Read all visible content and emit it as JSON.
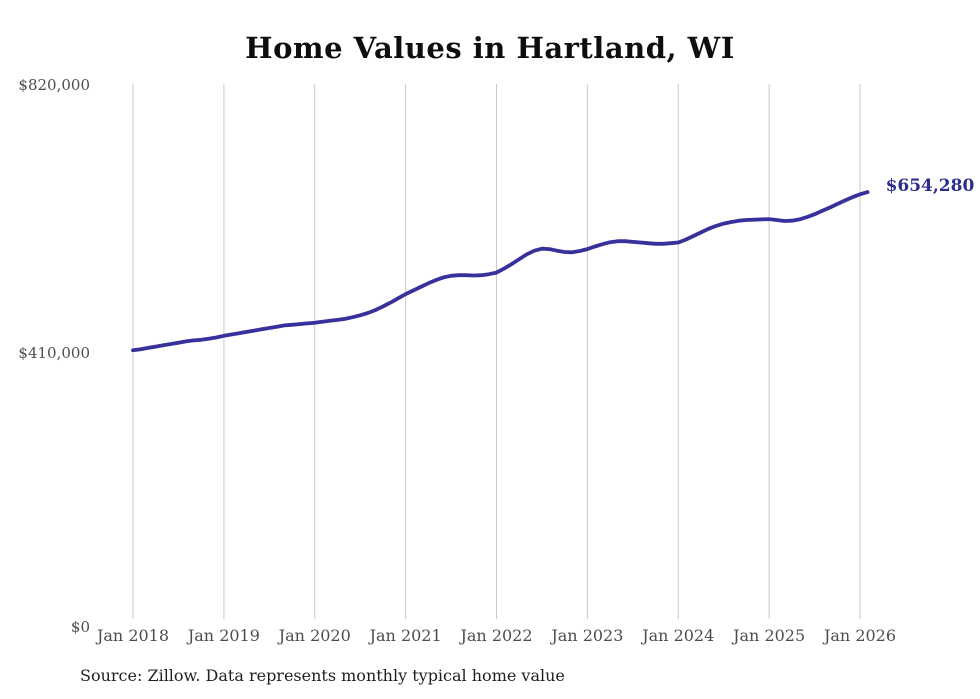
{
  "title": "Home Values in Hartland, WI",
  "source_note": "Source: Zillow. Data represents monthly typical home value",
  "end_label": "$654,280",
  "colors": {
    "line": "#37329B",
    "end_label_text": "#2B2E8C",
    "gridline": "#C9C9C9",
    "axis_text": "#4D4D4D",
    "title_text": "#0E0E0E",
    "source_text": "#1F1F1F",
    "background": "#FFFFFF"
  },
  "chart_data": {
    "type": "line",
    "title": "Home Values in Hartland, WI",
    "xlabel": "",
    "ylabel": "",
    "ylim": [
      0,
      820000
    ],
    "y_ticks": [
      {
        "value": 0,
        "label": "$0"
      },
      {
        "value": 410000,
        "label": "$410,000"
      },
      {
        "value": 820000,
        "label": "$820,000"
      }
    ],
    "x_tick_labels": [
      "Jan 2018",
      "Jan 2019",
      "Jan 2020",
      "Jan 2021",
      "Jan 2022",
      "Jan 2023",
      "Jan 2024",
      "Jan 2025",
      "Jan 2026"
    ],
    "grid": "vertical gridlines at each January, no horizontal gridlines",
    "legend": "none",
    "series": [
      {
        "name": "Typical home value",
        "frequency": "monthly",
        "start": "Jan 2018",
        "end": "Feb 2026",
        "latest_value": 654280,
        "latest_value_label": "$654,280",
        "values": [
          412000,
          413500,
          415500,
          417500,
          419500,
          421500,
          423500,
          425500,
          427000,
          428000,
          429500,
          431500,
          434000,
          436000,
          438000,
          440000,
          442000,
          444000,
          446000,
          448000,
          450000,
          451000,
          452000,
          453000,
          454000,
          455500,
          457000,
          458500,
          460000,
          462500,
          465500,
          469000,
          473500,
          479000,
          485000,
          491500,
          498000,
          503500,
          509000,
          514500,
          519500,
          523500,
          526000,
          527000,
          527000,
          526500,
          527000,
          528500,
          531000,
          537000,
          544000,
          551500,
          559000,
          564500,
          567500,
          567000,
          564500,
          562500,
          562000,
          564000,
          567000,
          571000,
          574500,
          577500,
          579000,
          579000,
          578000,
          577000,
          576000,
          575000,
          575000,
          576000,
          577000,
          581500,
          587000,
          592500,
          598000,
          602500,
          606000,
          608500,
          610500,
          611500,
          612000,
          612500,
          613000,
          611500,
          610000,
          610500,
          612500,
          616000,
          620500,
          625500,
          630500,
          636000,
          641500,
          646500,
          651000,
          654280
        ]
      }
    ]
  }
}
